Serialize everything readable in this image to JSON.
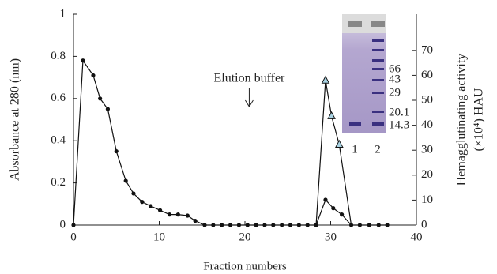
{
  "chart_data": {
    "type": "line",
    "x_label": "Fraction numbers",
    "y_label": "Absorbance at 280 (nm)",
    "y2_label": [
      "Hemagglutinating activity",
      "(×10⁴) HAU"
    ],
    "xlim": [
      0,
      40
    ],
    "xticks": [
      0,
      10,
      20,
      30,
      40
    ],
    "ylim": [
      0,
      1
    ],
    "yticks": [
      0,
      0.2,
      0.4,
      0.6,
      0.8,
      1
    ],
    "y2lim": [
      0,
      84.5
    ],
    "y2ticks": [
      0,
      10,
      20,
      30,
      40,
      50,
      60,
      70
    ],
    "annotation": "Elution buffer",
    "annotation_x": 20.5,
    "series": [
      {
        "marker": "dot",
        "color": "#111",
        "x": [
          0,
          1.1,
          2.3,
          3.1,
          4,
          5,
          6.1,
          7,
          8,
          9,
          10.1,
          11.2,
          12.2,
          13.3,
          14.2,
          15.3,
          16.3,
          17.3,
          18.3,
          19.3,
          20.3,
          21.3,
          22.3,
          23.3,
          24.3,
          25.3,
          26.3,
          27.3,
          28.3,
          29.4,
          30.3,
          31.3,
          32.4,
          33.4,
          34.5,
          35.6,
          36.6
        ],
        "values": [
          0,
          0.78,
          0.71,
          0.6,
          0.55,
          0.35,
          0.21,
          0.15,
          0.11,
          0.09,
          0.07,
          0.05,
          0.05,
          0.045,
          0.02,
          0,
          0,
          0,
          0,
          0,
          0,
          0,
          0,
          0,
          0,
          0,
          0,
          0,
          0,
          0.12,
          0.08,
          0.05,
          0,
          0,
          0,
          0,
          0
        ]
      },
      {
        "marker": "triangle",
        "color": "#111",
        "marker_fill": "#a9d3e3",
        "axis": "y2",
        "x": [
          28.3,
          29.4,
          30.1,
          31,
          32.4
        ],
        "values": [
          0,
          58,
          43.7,
          32.3,
          0
        ]
      }
    ],
    "inset": {
      "markers": [
        "66",
        "43",
        "29",
        "20.1",
        "14.3"
      ],
      "lanes": [
        "1",
        "2"
      ]
    }
  }
}
